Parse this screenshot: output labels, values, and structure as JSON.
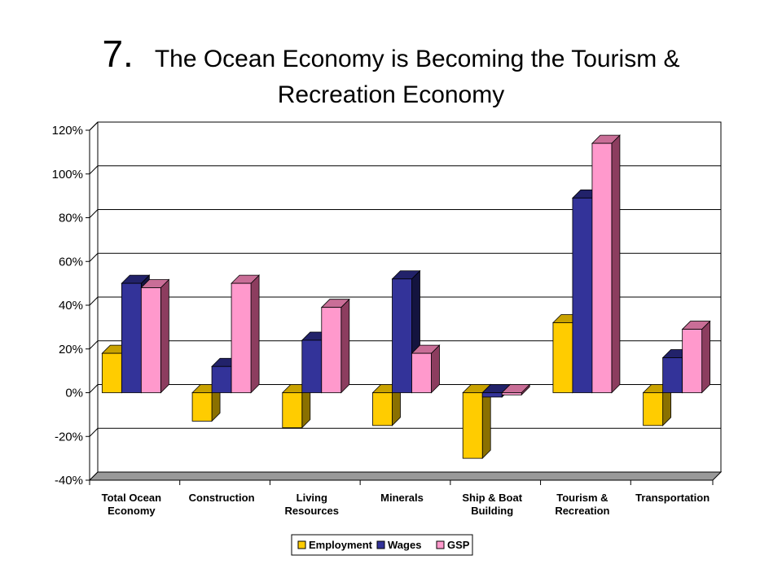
{
  "title": {
    "number": "7.",
    "line1": "The Ocean Economy is Becoming the Tourism &",
    "line2": "Recreation Economy"
  },
  "chart_data": {
    "type": "bar",
    "title": "",
    "xlabel": "",
    "ylabel": "",
    "ylim": [
      -0.4,
      1.2
    ],
    "y_ticks": [
      -0.4,
      -0.2,
      0,
      0.2,
      0.4,
      0.6,
      0.8,
      1.0,
      1.2
    ],
    "y_tick_labels": [
      "-40%",
      "-20%",
      "0%",
      "20%",
      "40%",
      "60%",
      "80%",
      "100%",
      "120%"
    ],
    "grid": true,
    "legend_position": "bottom",
    "categories": [
      [
        "Total Ocean",
        "Economy"
      ],
      [
        "Construction"
      ],
      [
        "Living",
        "Resources"
      ],
      [
        "Minerals"
      ],
      [
        "Ship & Boat",
        "Building"
      ],
      [
        "Tourism &",
        "Recreation"
      ],
      [
        "Transportation"
      ]
    ],
    "series": [
      {
        "name": "Employment",
        "color": "#FFCC00",
        "side_color": "#8A7000",
        "top_color": "#C9A200",
        "values": [
          0.18,
          -0.13,
          -0.16,
          -0.15,
          -0.3,
          0.32,
          -0.15
        ]
      },
      {
        "name": "Wages",
        "color": "#333399",
        "side_color": "#14143F",
        "top_color": "#22226A",
        "values": [
          0.5,
          0.12,
          0.24,
          0.52,
          -0.02,
          0.89,
          0.16
        ]
      },
      {
        "name": "GSP",
        "color": "#FF99CC",
        "side_color": "#8C3D5F",
        "top_color": "#C96E97",
        "values": [
          0.48,
          0.5,
          0.39,
          0.18,
          -0.01,
          1.14,
          0.29
        ]
      }
    ]
  }
}
